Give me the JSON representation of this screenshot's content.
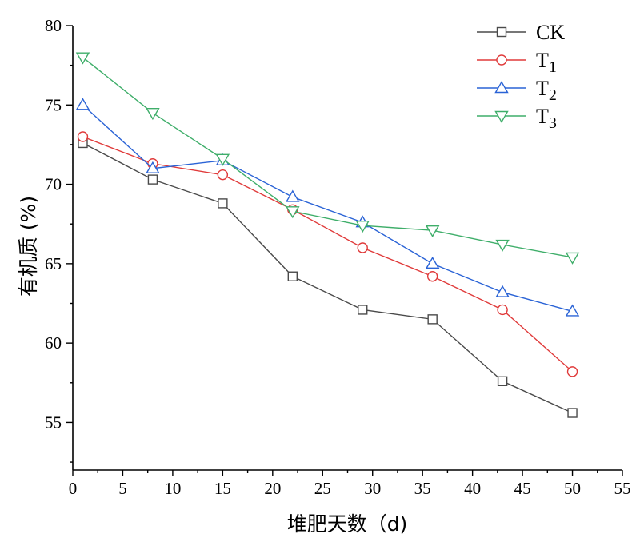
{
  "chart_data": {
    "type": "line",
    "xlabel": "堆肥天数（d)",
    "ylabel": "有机质 (%)",
    "xlim": [
      0,
      55
    ],
    "ylim": [
      52,
      80
    ],
    "xticks": [
      0,
      5,
      10,
      15,
      20,
      25,
      30,
      35,
      40,
      45,
      50,
      55
    ],
    "yticks": [
      55,
      60,
      65,
      70,
      75,
      80
    ],
    "grid": false,
    "legend_position": "top-right",
    "x": [
      1,
      8,
      15,
      22,
      29,
      36,
      43,
      50
    ],
    "series": [
      {
        "name": "CK",
        "color": "#4a4a4a",
        "marker": "square",
        "values": [
          72.6,
          70.3,
          68.8,
          64.2,
          62.1,
          61.5,
          57.6,
          55.6
        ]
      },
      {
        "name": "T1",
        "name_main": "T",
        "name_sub": "1",
        "color": "#e03a3a",
        "marker": "circle",
        "values": [
          73.0,
          71.3,
          70.6,
          68.4,
          66.0,
          64.2,
          62.1,
          58.2
        ]
      },
      {
        "name": "T2",
        "name_main": "T",
        "name_sub": "2",
        "color": "#2a63d6",
        "marker": "triangle-up",
        "values": [
          75.0,
          71.0,
          71.5,
          69.2,
          67.6,
          65.0,
          63.2,
          62.0
        ]
      },
      {
        "name": "T3",
        "name_main": "T",
        "name_sub": "3",
        "color": "#3fae6a",
        "marker": "triangle-down",
        "values": [
          78.0,
          74.5,
          71.6,
          68.3,
          67.4,
          67.1,
          66.2,
          65.4
        ]
      }
    ]
  }
}
